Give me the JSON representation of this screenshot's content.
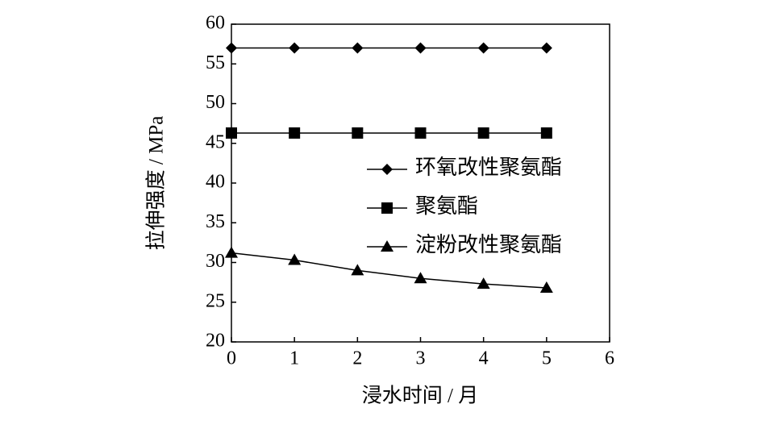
{
  "chart_data": {
    "type": "line",
    "x": [
      0,
      1,
      2,
      3,
      4,
      5
    ],
    "series": [
      {
        "name": "环氧改性聚氨酯",
        "color": "#000000",
        "marker": "diamond",
        "values": [
          57,
          57,
          57,
          57,
          57,
          57
        ]
      },
      {
        "name": "聚氨酯",
        "color": "#000000",
        "marker": "square",
        "values": [
          46.3,
          46.3,
          46.3,
          46.3,
          46.3,
          46.3
        ]
      },
      {
        "name": "淀粉改性聚氨酯",
        "color": "#000000",
        "marker": "triangle",
        "values": [
          31.2,
          30.3,
          29.0,
          28.0,
          27.3,
          26.8
        ]
      }
    ],
    "xlabel": "浸水时间 / 月",
    "ylabel": "拉伸强度 / MPa",
    "xlim": [
      0,
      6
    ],
    "xticks": [
      0,
      1,
      2,
      3,
      4,
      5,
      6
    ],
    "ylim": [
      20,
      60
    ],
    "yticks": [
      20,
      25,
      30,
      35,
      40,
      45,
      50,
      55,
      60
    ],
    "grid": false,
    "legend": "right"
  }
}
